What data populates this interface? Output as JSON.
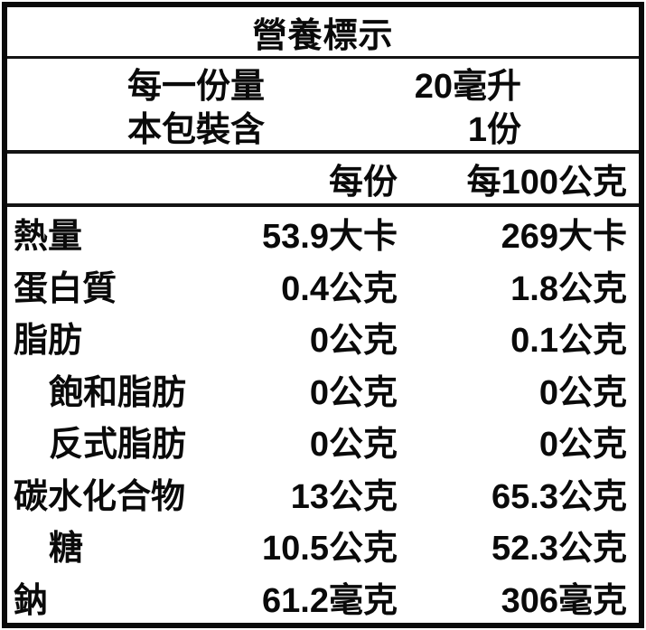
{
  "label": {
    "title": "營養標示",
    "serving_info": [
      {
        "name": "每一份量",
        "value": "20毫升"
      },
      {
        "name": "本包裝含",
        "value": "1份"
      }
    ],
    "columns": {
      "per_serving": "每份",
      "per_100g": "每100公克"
    },
    "rows": [
      {
        "label": "熱量",
        "per_serving": "53.9大卡",
        "per_100g": "269大卡"
      },
      {
        "label": "蛋白質",
        "per_serving": "0.4公克",
        "per_100g": "1.8公克"
      },
      {
        "label": "脂肪",
        "per_serving": "0公克",
        "per_100g": "0.1公克"
      },
      {
        "label": "飽和脂肪",
        "per_serving": "0公克",
        "per_100g": "0公克"
      },
      {
        "label": "反式脂肪",
        "per_serving": "0公克",
        "per_100g": "0公克"
      },
      {
        "label": "碳水化合物",
        "per_serving": "13公克",
        "per_100g": "65.3公克"
      },
      {
        "label": "糖",
        "per_serving": "10.5公克",
        "per_100g": "52.3公克"
      },
      {
        "label": "鈉",
        "per_serving": "61.2毫克",
        "per_100g": "306毫克"
      }
    ],
    "colors": {
      "border": "#0a0a0a",
      "background": "#ffffff",
      "text": "#0a0a0a"
    }
  }
}
